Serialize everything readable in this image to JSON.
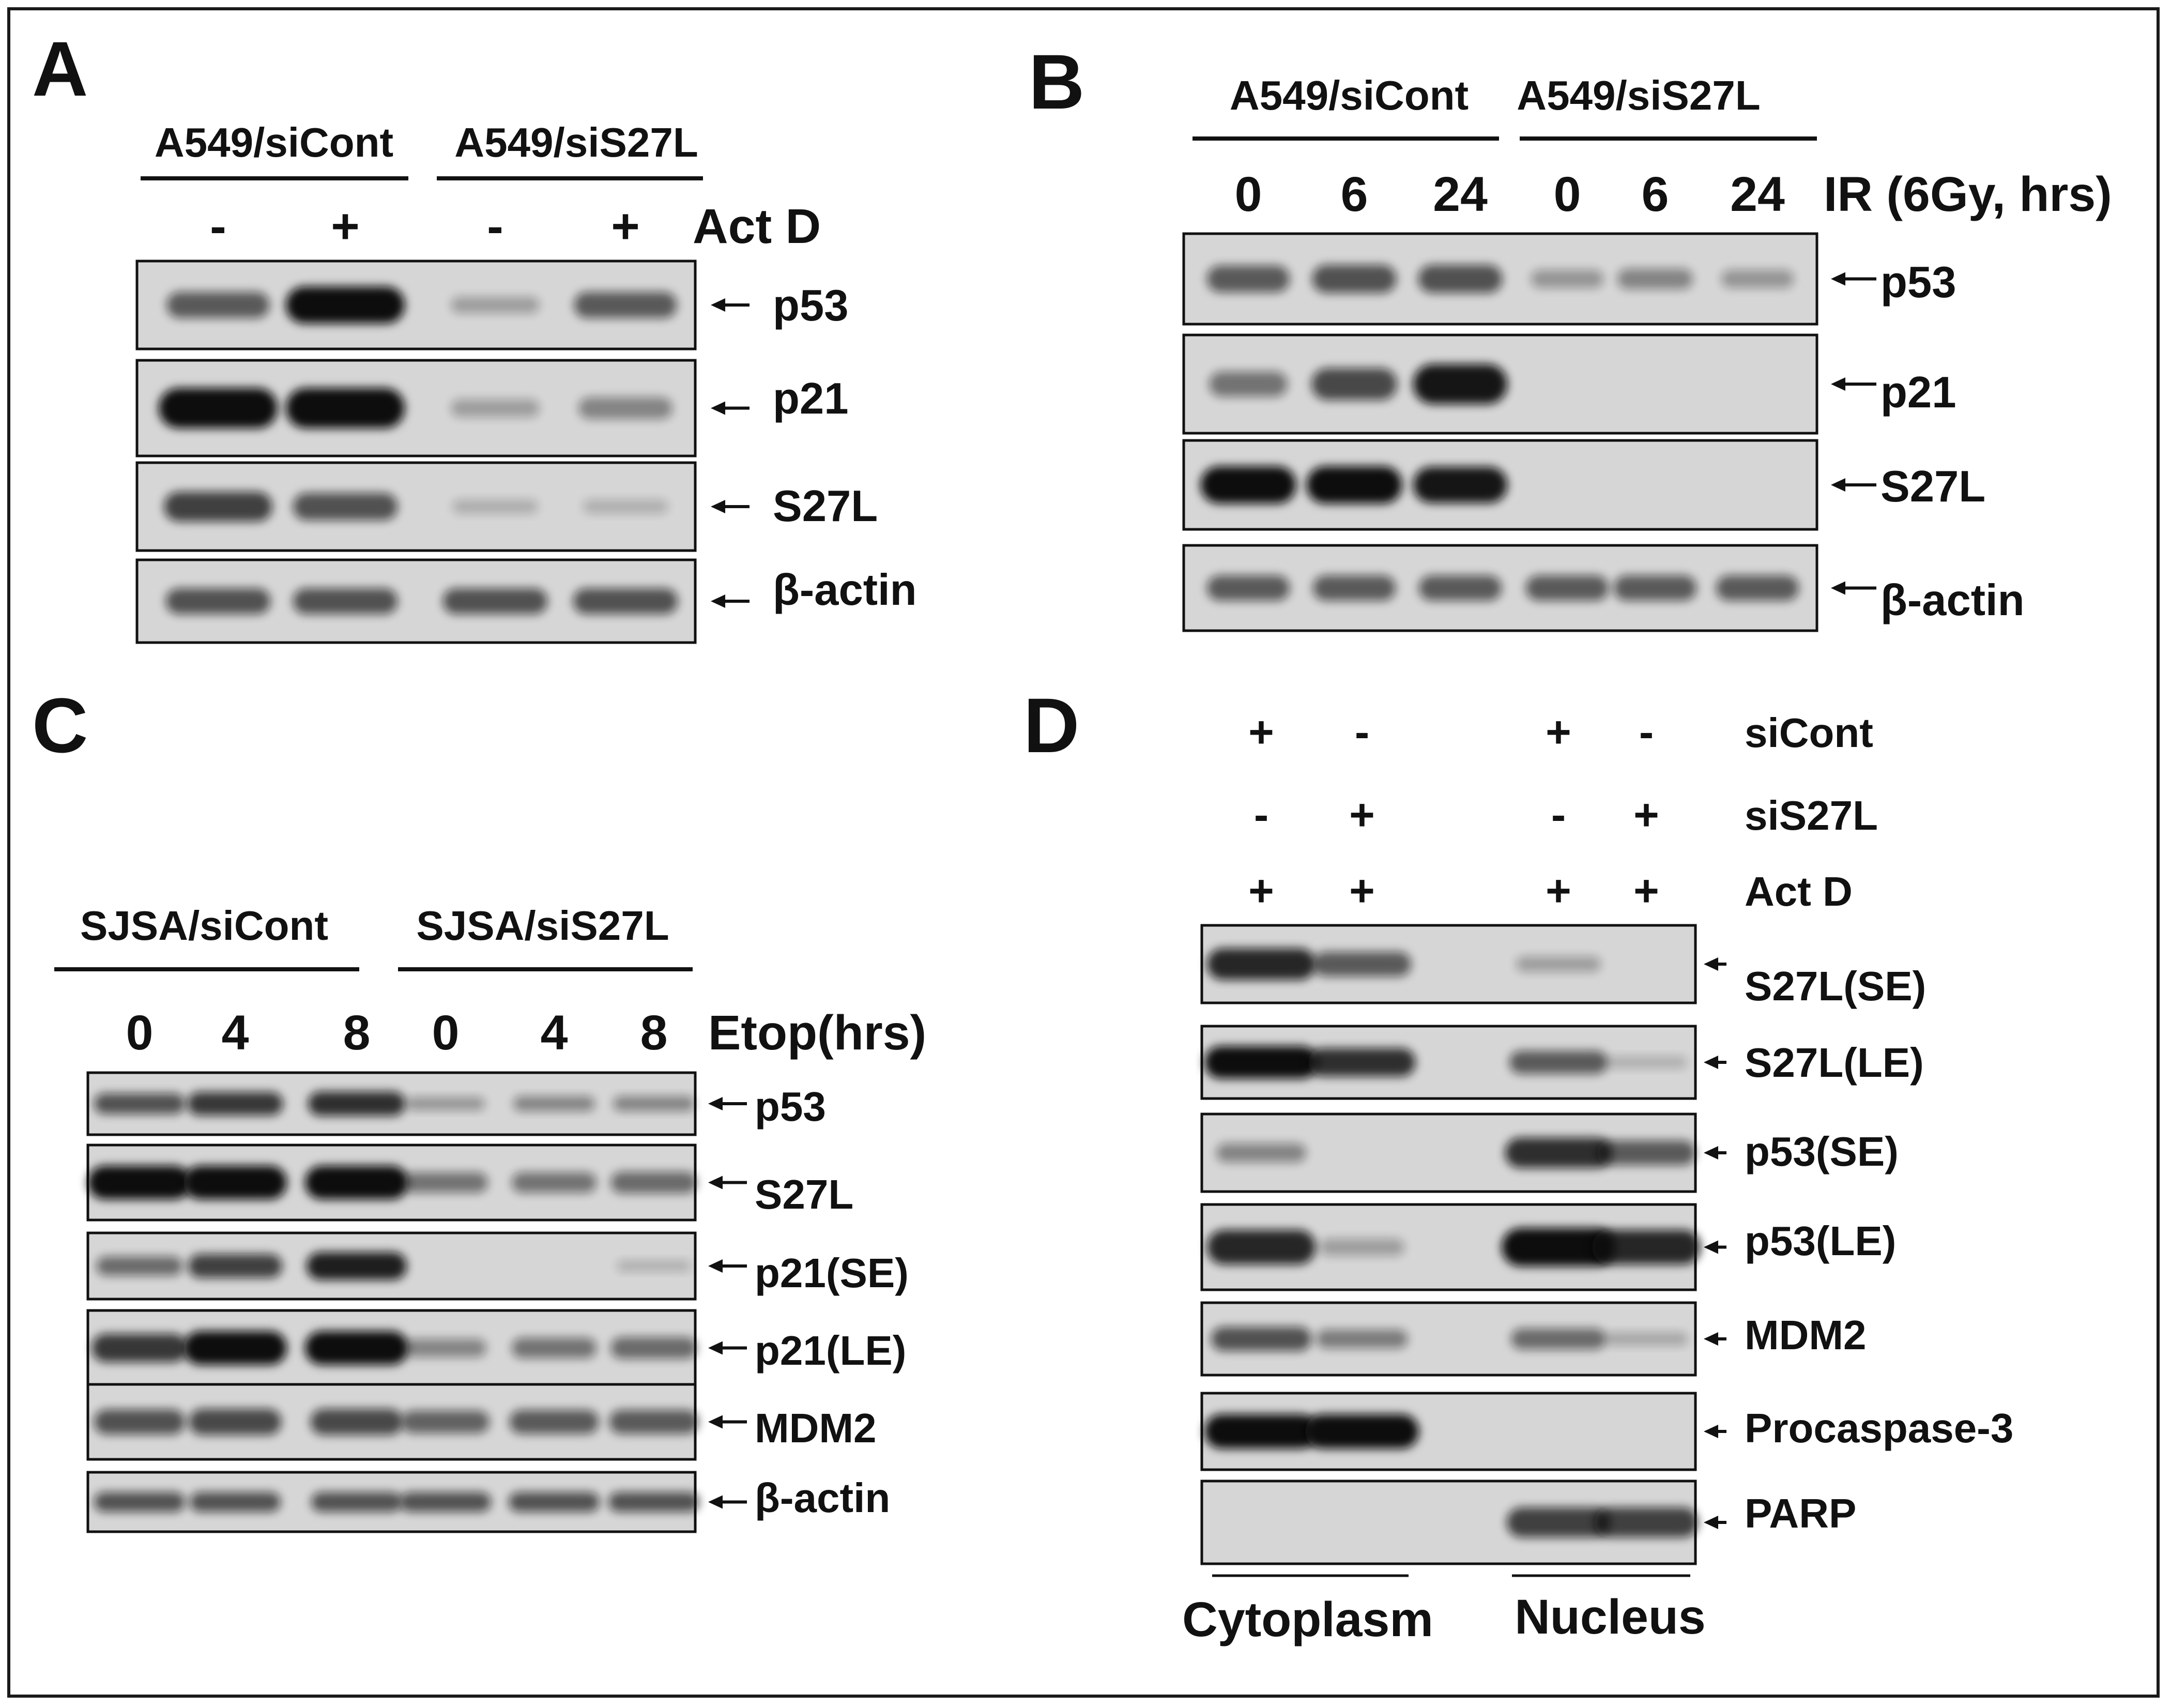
{
  "figure": {
    "panels": [
      {
        "letter": "A",
        "groups": [
          "A549/siCont",
          "A549/siS27L"
        ],
        "lanes": [
          "-",
          "+",
          "-",
          "+"
        ],
        "condition": "Act D",
        "blots": [
          {
            "label": "p53",
            "levels": [
              0.55,
              1.0,
              0.15,
              0.55
            ]
          },
          {
            "label": "p21",
            "levels": [
              1.0,
              1.0,
              0.15,
              0.3
            ]
          },
          {
            "label": "S27L",
            "levels": [
              0.7,
              0.6,
              0.06,
              0.05
            ]
          },
          {
            "label": "β-actin",
            "levels": [
              0.6,
              0.6,
              0.6,
              0.6
            ]
          }
        ]
      },
      {
        "letter": "B",
        "groups": [
          "A549/siCont",
          "A549/siS27L"
        ],
        "lanes": [
          "0",
          "6",
          "24",
          "0",
          "6",
          "24"
        ],
        "condition": "IR (6Gy, hrs)",
        "blots": [
          {
            "label": "p53",
            "levels": [
              0.55,
              0.6,
              0.6,
              0.2,
              0.3,
              0.2
            ]
          },
          {
            "label": "p21",
            "levels": [
              0.4,
              0.65,
              0.95,
              0,
              0,
              0
            ]
          },
          {
            "label": "S27L",
            "levels": [
              1.0,
              1.0,
              0.95,
              0,
              0,
              0
            ]
          },
          {
            "label": "β-actin",
            "levels": [
              0.55,
              0.55,
              0.55,
              0.55,
              0.55,
              0.55
            ]
          }
        ]
      },
      {
        "letter": "C",
        "groups": [
          "SJSA/siCont",
          "SJSA/siS27L"
        ],
        "lanes": [
          "0",
          "4",
          "8",
          "0",
          "4",
          "8"
        ],
        "condition": "Etop(hrs)",
        "blots": [
          {
            "label": "p53",
            "levels": [
              0.6,
              0.75,
              0.8,
              0.2,
              0.3,
              0.3
            ]
          },
          {
            "label": "S27L",
            "levels": [
              1.0,
              1.0,
              1.0,
              0.4,
              0.4,
              0.45
            ]
          },
          {
            "label": "p21(SE)",
            "levels": [
              0.45,
              0.7,
              0.9,
              0,
              0,
              0.05
            ]
          },
          {
            "label": "p21(LE)",
            "levels": [
              0.75,
              1.0,
              1.0,
              0.3,
              0.4,
              0.45
            ]
          },
          {
            "label": "MDM2",
            "levels": [
              0.6,
              0.65,
              0.65,
              0.5,
              0.55,
              0.55
            ]
          },
          {
            "label": "β-actin",
            "levels": [
              0.6,
              0.6,
              0.6,
              0.6,
              0.6,
              0.6
            ]
          }
        ]
      },
      {
        "letter": "D",
        "rows": [
          {
            "label": "siCont",
            "signs": [
              "+",
              "-",
              "+",
              "-"
            ]
          },
          {
            "label": "siS27L",
            "signs": [
              "-",
              "+",
              "-",
              "+"
            ]
          },
          {
            "label": "Act D",
            "signs": [
              "+",
              "+",
              "+",
              "+"
            ]
          }
        ],
        "blots": [
          {
            "label": "S27L(SE)",
            "levels": [
              0.85,
              0.55,
              0.15,
              0
            ]
          },
          {
            "label": "S27L(LE)",
            "levels": [
              1.0,
              0.8,
              0.55,
              0.05
            ]
          },
          {
            "label": "p53(SE)",
            "levels": [
              0.3,
              0,
              0.8,
              0.55
            ]
          },
          {
            "label": "p53(LE)",
            "levels": [
              0.85,
              0.15,
              1.0,
              0.85
            ]
          },
          {
            "label": "MDM2",
            "levels": [
              0.6,
              0.35,
              0.45,
              0.1
            ]
          },
          {
            "label": "Procaspase-3",
            "levels": [
              1.0,
              1.0,
              0,
              0
            ]
          },
          {
            "label": "PARP",
            "levels": [
              0,
              0,
              0.7,
              0.7
            ]
          }
        ],
        "fractions": [
          "Cytoplasm",
          "Nucleus"
        ]
      }
    ]
  },
  "colors": {
    "band": "#0e0e0e",
    "membrane": "#d6d6d6",
    "ink": "#111111"
  }
}
